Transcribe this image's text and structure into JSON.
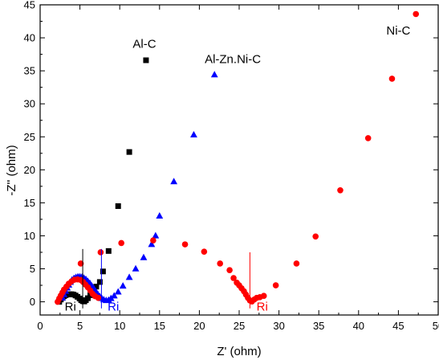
{
  "chart_data": {
    "type": "scatter",
    "xlabel": "Z' (ohm)",
    "ylabel": "-Z'' (ohm)",
    "xlim": [
      0,
      50
    ],
    "ylim": [
      -2,
      45
    ],
    "xticks": [
      0,
      5,
      10,
      15,
      20,
      25,
      30,
      35,
      40,
      45,
      50
    ],
    "yticks": [
      0,
      5,
      10,
      15,
      20,
      25,
      30,
      35,
      40,
      45
    ],
    "grid": false,
    "series": [
      {
        "name": "Al-C",
        "color": "#000000",
        "marker": "square",
        "points": [
          [
            2.4,
            0.0
          ],
          [
            2.6,
            0.35
          ],
          [
            2.8,
            0.6
          ],
          [
            3.0,
            0.85
          ],
          [
            3.2,
            1.0
          ],
          [
            3.45,
            1.1
          ],
          [
            3.7,
            1.15
          ],
          [
            3.95,
            1.15
          ],
          [
            4.2,
            1.1
          ],
          [
            4.45,
            0.95
          ],
          [
            4.7,
            0.75
          ],
          [
            4.95,
            0.5
          ],
          [
            5.15,
            0.25
          ],
          [
            5.35,
            0.1
          ],
          [
            5.55,
            0.05
          ],
          [
            5.75,
            0.25
          ],
          [
            6.0,
            0.55
          ],
          [
            6.3,
            1.0
          ],
          [
            6.65,
            1.6
          ],
          [
            7.05,
            2.3
          ],
          [
            7.5,
            3.0
          ],
          [
            7.9,
            4.6
          ],
          [
            8.6,
            7.7
          ],
          [
            9.8,
            14.5
          ],
          [
            11.2,
            22.7
          ],
          [
            13.3,
            36.6
          ]
        ]
      },
      {
        "name": "Al-Zn.Ni-C",
        "color": "#0000ff",
        "marker": "triangle",
        "points": [
          [
            2.8,
            0.6
          ],
          [
            3.0,
            1.1
          ],
          [
            3.2,
            1.6
          ],
          [
            3.4,
            2.1
          ],
          [
            3.6,
            2.55
          ],
          [
            3.8,
            2.95
          ],
          [
            4.0,
            3.3
          ],
          [
            4.25,
            3.55
          ],
          [
            4.5,
            3.7
          ],
          [
            4.75,
            3.8
          ],
          [
            5.0,
            3.8
          ],
          [
            5.25,
            3.75
          ],
          [
            5.5,
            3.6
          ],
          [
            5.75,
            3.4
          ],
          [
            6.0,
            3.1
          ],
          [
            6.25,
            2.8
          ],
          [
            6.5,
            2.4
          ],
          [
            6.75,
            2.0
          ],
          [
            7.0,
            1.55
          ],
          [
            7.25,
            1.15
          ],
          [
            7.5,
            0.8
          ],
          [
            7.75,
            0.5
          ],
          [
            8.0,
            0.3
          ],
          [
            8.3,
            0.2
          ],
          [
            8.6,
            0.25
          ],
          [
            8.9,
            0.5
          ],
          [
            9.3,
            0.9
          ],
          [
            9.8,
            1.5
          ],
          [
            10.4,
            2.4
          ],
          [
            11.2,
            3.7
          ],
          [
            12.0,
            5.0
          ],
          [
            13.0,
            6.7
          ],
          [
            14.0,
            8.7
          ],
          [
            14.5,
            10.0
          ],
          [
            15.0,
            13.0
          ],
          [
            16.8,
            18.2
          ],
          [
            19.3,
            25.3
          ],
          [
            21.9,
            34.4
          ]
        ]
      },
      {
        "name": "Ni-C",
        "color": "#ff0000",
        "marker": "circle",
        "points": [
          [
            2.2,
            0.0
          ],
          [
            2.4,
            0.5
          ],
          [
            2.6,
            0.95
          ],
          [
            2.8,
            1.4
          ],
          [
            3.0,
            1.85
          ],
          [
            3.3,
            2.3
          ],
          [
            3.6,
            2.75
          ],
          [
            3.95,
            3.1
          ],
          [
            4.3,
            3.35
          ],
          [
            4.7,
            3.4
          ],
          [
            5.1,
            3.3
          ],
          [
            5.4,
            3.0
          ],
          [
            5.7,
            2.6
          ],
          [
            6.0,
            2.2
          ],
          [
            6.3,
            1.7
          ],
          [
            6.6,
            1.2
          ],
          [
            6.9,
            0.85
          ],
          [
            7.3,
            0.6
          ],
          [
            7.6,
            7.5
          ],
          [
            5.1,
            5.8
          ],
          [
            10.2,
            8.9
          ],
          [
            14.2,
            9.3
          ],
          [
            18.2,
            8.7
          ],
          [
            20.6,
            7.6
          ],
          [
            22.6,
            5.8
          ],
          [
            23.8,
            4.8
          ],
          [
            24.3,
            3.6
          ],
          [
            24.7,
            2.9
          ],
          [
            25.0,
            2.5
          ],
          [
            25.3,
            2.05
          ],
          [
            25.6,
            1.6
          ],
          [
            25.85,
            1.1
          ],
          [
            26.1,
            0.6
          ],
          [
            26.35,
            0.2
          ],
          [
            26.6,
            0.05
          ],
          [
            26.9,
            0.35
          ],
          [
            27.2,
            0.6
          ],
          [
            27.6,
            0.7
          ],
          [
            28.1,
            0.9
          ],
          [
            29.6,
            2.5
          ],
          [
            32.2,
            5.8
          ],
          [
            34.6,
            9.9
          ],
          [
            37.7,
            16.9
          ],
          [
            41.2,
            24.8
          ],
          [
            44.2,
            33.8
          ],
          [
            47.2,
            43.6
          ]
        ]
      }
    ],
    "annotations": [
      {
        "text": "Al-C",
        "color": "#000000",
        "x": 13.1,
        "y": 38.5,
        "anchor": "middle"
      },
      {
        "text": "Al-Zn.Ni-C",
        "color": "#000000",
        "x": 24.2,
        "y": 36.2,
        "anchor": "middle"
      },
      {
        "text": "Ni-C",
        "color": "#000000",
        "x": 45.0,
        "y": 40.5,
        "anchor": "middle"
      }
    ],
    "ri_markers": [
      {
        "text": "Ri",
        "color": "#000000",
        "x": 5.35,
        "y_top": 8.0,
        "label_x": 3.8
      },
      {
        "text": "Ri",
        "color": "#0000ff",
        "x": 7.7,
        "y_top": 8.0,
        "label_x": 9.2
      },
      {
        "text": "Ri",
        "color": "#ff0000",
        "x": 26.35,
        "y_top": 7.5,
        "label_x": 27.9
      }
    ]
  }
}
